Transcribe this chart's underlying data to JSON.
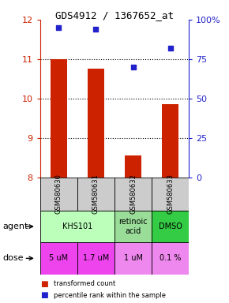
{
  "title": "GDS4912 / 1367652_at",
  "samples": [
    "GSM580630",
    "GSM580631",
    "GSM580632",
    "GSM580633"
  ],
  "bar_values": [
    11.0,
    10.75,
    8.55,
    9.85
  ],
  "bar_bottom": 8.0,
  "dot_values_pct": [
    95,
    94,
    70,
    82
  ],
  "ylim_left": [
    8,
    12
  ],
  "ylim_right": [
    0,
    100
  ],
  "yticks_left": [
    8,
    9,
    10,
    11,
    12
  ],
  "yticks_right": [
    0,
    25,
    50,
    75,
    100
  ],
  "ytick_labels_right": [
    "0",
    "25",
    "50",
    "75",
    "100%"
  ],
  "bar_color": "#cc2200",
  "dot_color": "#2222cc",
  "agent_cells": [
    [
      0,
      2,
      "KHS101",
      "#bbffbb"
    ],
    [
      2,
      1,
      "retinoic\nacid",
      "#99dd99"
    ],
    [
      3,
      1,
      "DMSO",
      "#33cc44"
    ]
  ],
  "dose_cells": [
    [
      0,
      1,
      "5 uM",
      "#ee44ee"
    ],
    [
      1,
      1,
      "1.7 uM",
      "#ee44ee"
    ],
    [
      2,
      1,
      "1 uM",
      "#ee88ee"
    ],
    [
      3,
      1,
      "0.1 %",
      "#ee88ee"
    ]
  ],
  "sample_box_color": "#cccccc",
  "legend_bar_label": "transformed count",
  "legend_dot_label": "percentile rank within the sample"
}
